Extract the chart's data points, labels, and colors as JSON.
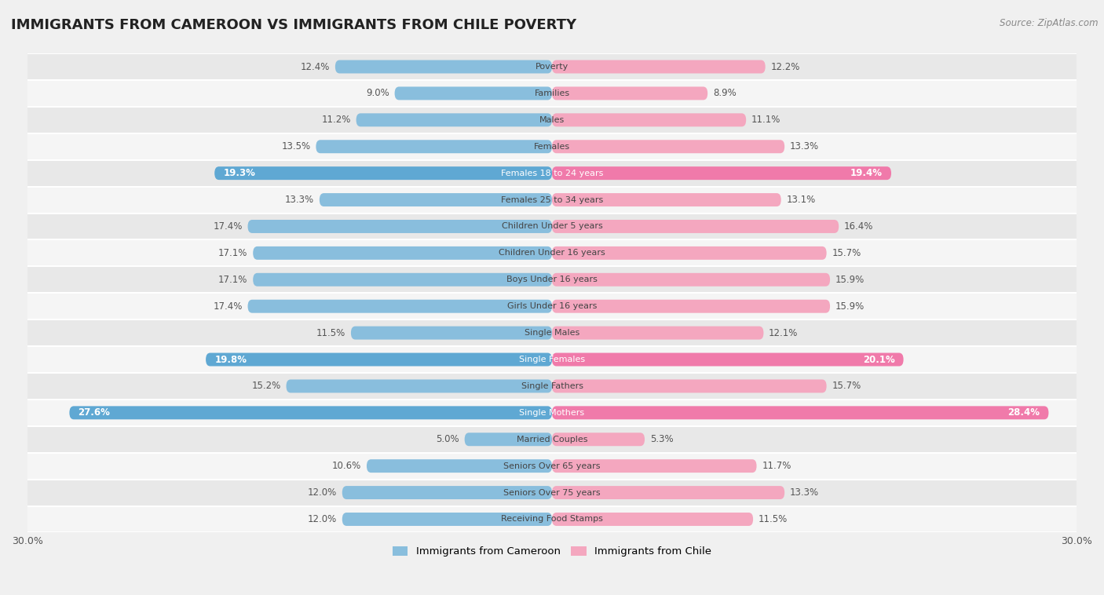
{
  "title": "IMMIGRANTS FROM CAMEROON VS IMMIGRANTS FROM CHILE POVERTY",
  "source": "Source: ZipAtlas.com",
  "categories": [
    "Poverty",
    "Families",
    "Males",
    "Females",
    "Females 18 to 24 years",
    "Females 25 to 34 years",
    "Children Under 5 years",
    "Children Under 16 years",
    "Boys Under 16 years",
    "Girls Under 16 years",
    "Single Males",
    "Single Females",
    "Single Fathers",
    "Single Mothers",
    "Married Couples",
    "Seniors Over 65 years",
    "Seniors Over 75 years",
    "Receiving Food Stamps"
  ],
  "cameroon_values": [
    12.4,
    9.0,
    11.2,
    13.5,
    19.3,
    13.3,
    17.4,
    17.1,
    17.1,
    17.4,
    11.5,
    19.8,
    15.2,
    27.6,
    5.0,
    10.6,
    12.0,
    12.0
  ],
  "chile_values": [
    12.2,
    8.9,
    11.1,
    13.3,
    19.4,
    13.1,
    16.4,
    15.7,
    15.9,
    15.9,
    12.1,
    20.1,
    15.7,
    28.4,
    5.3,
    11.7,
    13.3,
    11.5
  ],
  "cameroon_color": "#89bedd",
  "chile_color": "#f4a7bf",
  "cameroon_highlight_color": "#5fa8d3",
  "chile_highlight_color": "#f07aaa",
  "highlight_indices": [
    4,
    11,
    13
  ],
  "background_color": "#f0f0f0",
  "row_even_color": "#e8e8e8",
  "row_odd_color": "#f5f5f5",
  "axis_limit": 30.0,
  "legend_label_cameroon": "Immigrants from Cameroon",
  "legend_label_chile": "Immigrants from Chile",
  "bar_height": 0.5,
  "label_fontsize": 8.5,
  "category_fontsize": 8.0,
  "title_fontsize": 13,
  "source_fontsize": 8.5
}
